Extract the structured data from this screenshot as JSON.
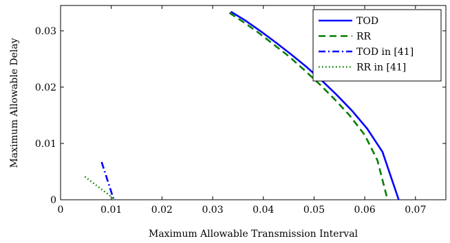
{
  "chart_data": {
    "type": "line",
    "xlabel": "Maximum Allowable Transmission Interval",
    "ylabel": "Maximum Allowable Delay",
    "xlim": [
      0,
      0.076
    ],
    "ylim": [
      0,
      0.0345
    ],
    "xticks": [
      0,
      0.01,
      0.02,
      0.03,
      0.04,
      0.05,
      0.06,
      0.07
    ],
    "xtick_labels": [
      "0",
      "0.01",
      "0.02",
      "0.03",
      "0.04",
      "0.05",
      "0.06",
      "0.07"
    ],
    "yticks": [
      0,
      0.01,
      0.02,
      0.03
    ],
    "ytick_labels": [
      "0",
      "0.01",
      "0.02",
      "0.03"
    ],
    "grid": false,
    "legend_position": "top-right",
    "series": [
      {
        "name": "TOD",
        "color": "#0000ff",
        "dash": "solid",
        "x": [
          0.0336,
          0.0365,
          0.0395,
          0.0425,
          0.0455,
          0.0485,
          0.0515,
          0.0545,
          0.0575,
          0.0605,
          0.0635,
          0.0667
        ],
        "y": [
          0.0334,
          0.0318,
          0.0299,
          0.0279,
          0.0258,
          0.0236,
          0.0212,
          0.0186,
          0.0158,
          0.0126,
          0.0085,
          0.0
        ]
      },
      {
        "name": "RR",
        "color": "#007f00",
        "dash": "dashed",
        "x": [
          0.0333,
          0.036,
          0.039,
          0.042,
          0.045,
          0.048,
          0.051,
          0.054,
          0.057,
          0.06,
          0.0625,
          0.0645
        ],
        "y": [
          0.0332,
          0.0316,
          0.0297,
          0.0276,
          0.0255,
          0.0231,
          0.0206,
          0.0179,
          0.015,
          0.0115,
          0.007,
          0.0
        ]
      },
      {
        "name": "TOD in [41]",
        "color": "#0000ff",
        "dash": "dashdot",
        "x": [
          0.0081,
          0.0105
        ],
        "y": [
          0.0067,
          0.0
        ]
      },
      {
        "name": "RR in [41]",
        "color": "#007f00",
        "dash": "dotted",
        "x": [
          0.0048,
          0.0108
        ],
        "y": [
          0.0041,
          0.0
        ]
      }
    ]
  }
}
